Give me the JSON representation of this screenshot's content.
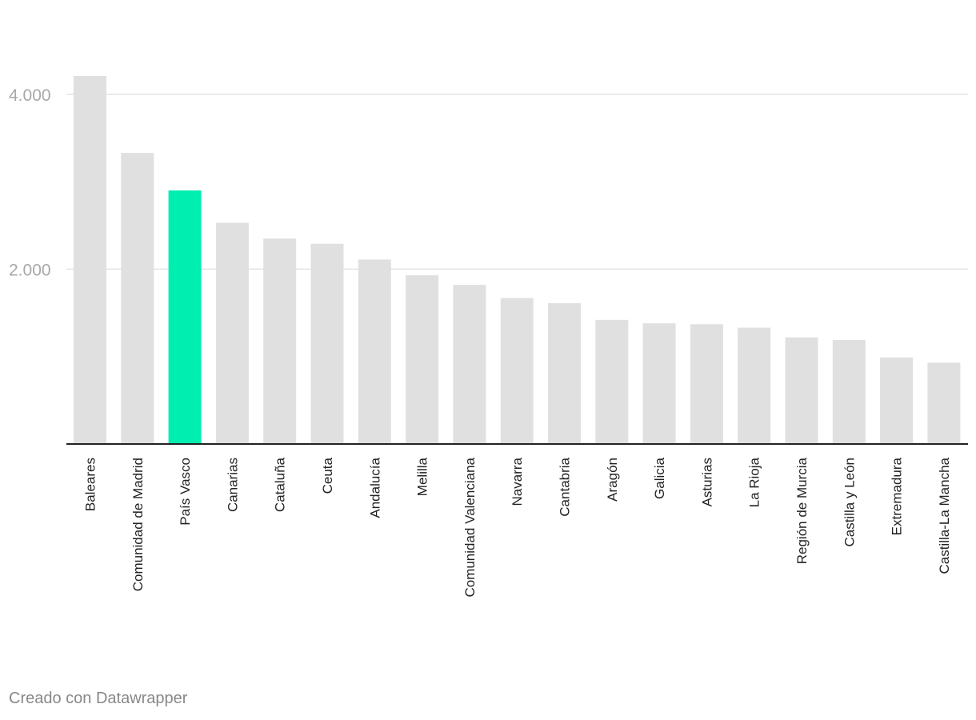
{
  "chart_data": {
    "type": "bar",
    "title": "",
    "xlabel": "",
    "ylabel": "",
    "ylim": [
      0,
      4200
    ],
    "yticks": [
      {
        "value": 2000,
        "label": "2.000"
      },
      {
        "value": 4000,
        "label": "4.000"
      }
    ],
    "grid": true,
    "categories": [
      "Baleares",
      "Comunidad de Madrid",
      "País Vasco",
      "Canarias",
      "Cataluña",
      "Ceuta",
      "Andalucía",
      "Melilla",
      "Comunidad Valenciana",
      "Navarra",
      "Cantabria",
      "Aragón",
      "Galicia",
      "Asturias",
      "La Rioja",
      "Región de Murcia",
      "Castilla y León",
      "Extremadura",
      "Castilla-La Mancha"
    ],
    "values": [
      4210,
      3330,
      2900,
      2530,
      2350,
      2290,
      2110,
      1930,
      1820,
      1670,
      1610,
      1420,
      1380,
      1370,
      1330,
      1220,
      1190,
      990,
      930
    ],
    "highlight": "País Vasco",
    "colors": {
      "bar": "#e0e0e0",
      "highlight": "#00efb0",
      "grid": "#e2e2e2",
      "baseline": "#222222"
    }
  },
  "footer": {
    "credit": "Creado con Datawrapper"
  }
}
